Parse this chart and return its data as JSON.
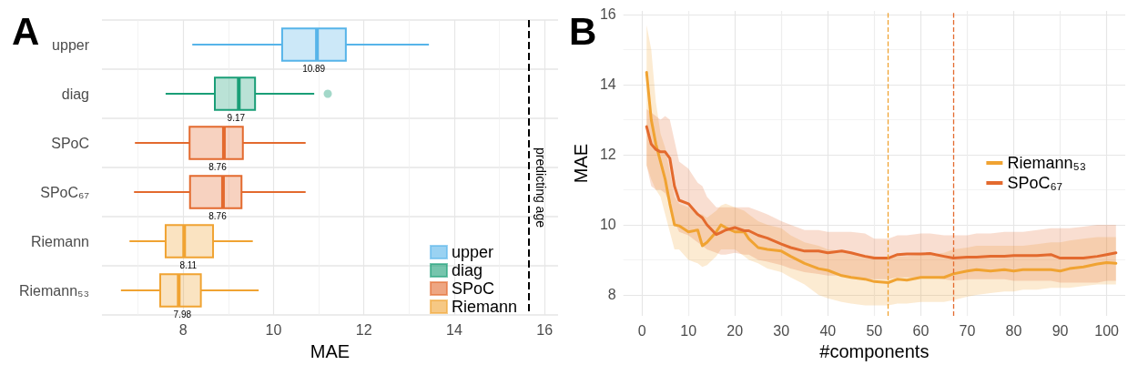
{
  "chart_data": [
    {
      "type": "box",
      "title": "A",
      "orientation": "horizontal",
      "categories": [
        "upper",
        "diag",
        "SPoC",
        "SPoC₆₇",
        "Riemann",
        "Riemann₅₃"
      ],
      "xlabel": "MAE",
      "xlim": [
        6.2,
        16.3
      ],
      "xticks": [
        8,
        10,
        12,
        14,
        16
      ],
      "grid": true,
      "legend": "bottom right",
      "series": [
        {
          "name": "upper",
          "color": "#56b4e9",
          "boxes": [
            {
              "low": 8.2,
              "q1": 10.19,
              "median": 10.96,
              "q3": 11.6,
              "high": 13.44
            },
            null,
            null,
            null,
            null,
            null
          ]
        },
        {
          "name": "diag",
          "color": "#1a9e77",
          "boxes": [
            null,
            {
              "low": 7.61,
              "q1": 8.7,
              "median": 9.23,
              "q3": 9.59,
              "high": 10.9,
              "outliers": [
                11.2
              ]
            },
            null,
            null,
            null,
            null
          ]
        },
        {
          "name": "SPoC",
          "color": "#e36a2e",
          "boxes": [
            null,
            null,
            {
              "low": 6.93,
              "q1": 8.14,
              "median": 8.9,
              "q3": 9.32,
              "high": 10.71
            },
            {
              "low": 6.91,
              "q1": 8.15,
              "median": 8.88,
              "q3": 9.29,
              "high": 10.71
            },
            null,
            null
          ]
        },
        {
          "name": "Riemann",
          "color": "#f0a332",
          "boxes": [
            null,
            null,
            null,
            null,
            {
              "low": 6.81,
              "q1": 7.61,
              "median": 8.02,
              "q3": 8.66,
              "high": 9.54
            },
            {
              "low": 6.62,
              "q1": 7.49,
              "median": 7.9,
              "q3": 8.39,
              "high": 9.67
            }
          ]
        }
      ],
      "ref_lines": [
        {
          "axis": "x",
          "value": 15.65,
          "label": "predicting age",
          "color": "#000000",
          "line_style": "dashed"
        }
      ],
      "annotations": [
        {
          "text": "10.89",
          "x": 10.89,
          "y": "upper"
        },
        {
          "text": "9.17",
          "x": 9.17,
          "y": "diag"
        },
        {
          "text": "8.76",
          "x": 8.76,
          "y": "SPoC"
        },
        {
          "text": "8.76",
          "x": 8.76,
          "y": "SPoC₆₇"
        },
        {
          "text": "8.11",
          "x": 8.11,
          "y": "Riemann"
        },
        {
          "text": "7.98",
          "x": 7.98,
          "y": "Riemann₅₃"
        }
      ]
    },
    {
      "type": "line",
      "title": "B",
      "xlabel": "#components",
      "ylabel": "MAE",
      "xlim": [
        -4,
        104
      ],
      "xticks": [
        0,
        10,
        20,
        30,
        40,
        50,
        60,
        70,
        80,
        90,
        100
      ],
      "ylim": [
        7.4,
        16.1
      ],
      "yticks": [
        8,
        10,
        12,
        14,
        16
      ],
      "grid": true,
      "legend": "right",
      "marker": "none",
      "line_style": "solid",
      "x": [
        1,
        2,
        3,
        4,
        5,
        6,
        7,
        8,
        10,
        12,
        13,
        14,
        16,
        17,
        18,
        20,
        22,
        23,
        25,
        27,
        30,
        32,
        35,
        38,
        40,
        43,
        45,
        48,
        50,
        53,
        55,
        57,
        60,
        62,
        65,
        67,
        70,
        72,
        75,
        78,
        80,
        82,
        85,
        88,
        90,
        92,
        95,
        98,
        100,
        102
      ],
      "series": [
        {
          "name": "Riemann₅₃",
          "color": "#f0a332",
          "values": [
            14.35,
            13.0,
            12.3,
            11.8,
            11.3,
            10.6,
            10.0,
            9.97,
            9.8,
            9.85,
            9.4,
            9.5,
            9.8,
            10.0,
            9.92,
            9.8,
            9.8,
            9.6,
            9.35,
            9.3,
            9.25,
            9.1,
            8.9,
            8.75,
            8.7,
            8.55,
            8.5,
            8.45,
            8.38,
            8.35,
            8.45,
            8.42,
            8.5,
            8.5,
            8.5,
            8.6,
            8.68,
            8.72,
            8.68,
            8.72,
            8.68,
            8.72,
            8.72,
            8.72,
            8.68,
            8.75,
            8.8,
            8.88,
            8.92,
            8.9
          ],
          "lower": [
            11.7,
            11.3,
            11.0,
            10.8,
            10.3,
            9.8,
            9.3,
            9.3,
            9.0,
            8.9,
            8.8,
            8.85,
            9.1,
            9.3,
            9.3,
            9.3,
            9.1,
            9.0,
            8.9,
            8.75,
            8.65,
            8.5,
            8.3,
            8.0,
            7.9,
            7.8,
            7.75,
            7.7,
            7.7,
            7.7,
            7.75,
            7.75,
            7.8,
            7.8,
            7.8,
            7.85,
            7.95,
            8.0,
            8.05,
            8.1,
            8.1,
            8.15,
            8.15,
            8.2,
            8.2,
            8.2,
            8.25,
            8.3,
            8.3,
            8.3
          ],
          "upper": [
            15.7,
            15.0,
            13.5,
            12.6,
            12.2,
            11.5,
            10.8,
            10.6,
            10.5,
            10.3,
            10.3,
            10.2,
            10.4,
            10.55,
            10.6,
            10.5,
            10.4,
            10.3,
            10.1,
            10.0,
            9.9,
            9.7,
            9.5,
            9.4,
            9.3,
            9.25,
            9.2,
            9.15,
            9.1,
            9.05,
            9.1,
            9.1,
            9.15,
            9.15,
            9.2,
            9.3,
            9.35,
            9.4,
            9.4,
            9.4,
            9.4,
            9.4,
            9.45,
            9.5,
            9.5,
            9.55,
            9.6,
            9.65,
            9.65,
            9.65
          ]
        },
        {
          "name": "SPoC₆₇",
          "color": "#e36a2e",
          "values": [
            12.8,
            12.3,
            12.15,
            12.08,
            12.08,
            11.9,
            11.1,
            10.7,
            10.6,
            10.3,
            10.2,
            10.0,
            9.72,
            9.78,
            9.85,
            9.92,
            9.83,
            9.83,
            9.7,
            9.62,
            9.45,
            9.35,
            9.25,
            9.25,
            9.2,
            9.25,
            9.2,
            9.1,
            9.05,
            9.05,
            9.15,
            9.17,
            9.17,
            9.18,
            9.1,
            9.05,
            9.08,
            9.08,
            9.1,
            9.1,
            9.12,
            9.12,
            9.12,
            9.15,
            9.05,
            9.05,
            9.05,
            9.1,
            9.15,
            9.2
          ],
          "lower": [
            11.7,
            11.1,
            11.0,
            11.0,
            10.9,
            10.6,
            10.1,
            9.8,
            9.7,
            9.5,
            9.4,
            9.3,
            9.2,
            9.15,
            9.15,
            9.2,
            9.15,
            9.15,
            9.0,
            8.95,
            8.85,
            8.75,
            8.65,
            8.6,
            8.55,
            8.55,
            8.5,
            8.45,
            8.45,
            8.45,
            8.5,
            8.5,
            8.5,
            8.5,
            8.45,
            8.4,
            8.45,
            8.45,
            8.45,
            8.45,
            8.4,
            8.4,
            8.4,
            8.4,
            8.35,
            8.35,
            8.35,
            8.35,
            8.4,
            8.4
          ],
          "upper": [
            13.3,
            13.2,
            13.1,
            13.0,
            13.1,
            13.0,
            12.4,
            11.8,
            11.6,
            11.2,
            11.1,
            10.8,
            10.5,
            10.5,
            10.5,
            10.5,
            10.5,
            10.5,
            10.4,
            10.3,
            10.1,
            10.0,
            9.85,
            9.85,
            9.8,
            9.8,
            9.8,
            9.75,
            9.6,
            9.6,
            9.7,
            9.7,
            9.75,
            9.75,
            9.7,
            9.7,
            9.7,
            9.75,
            9.75,
            9.8,
            9.8,
            9.8,
            9.85,
            9.9,
            9.9,
            9.9,
            9.95,
            10.0,
            10.0,
            10.0
          ]
        }
      ],
      "ref_lines": [
        {
          "axis": "x",
          "value": 53,
          "color": "#f0a332",
          "line_style": "dashed"
        },
        {
          "axis": "x",
          "value": 67,
          "color": "#e36a2e",
          "line_style": "dashed"
        }
      ]
    }
  ]
}
